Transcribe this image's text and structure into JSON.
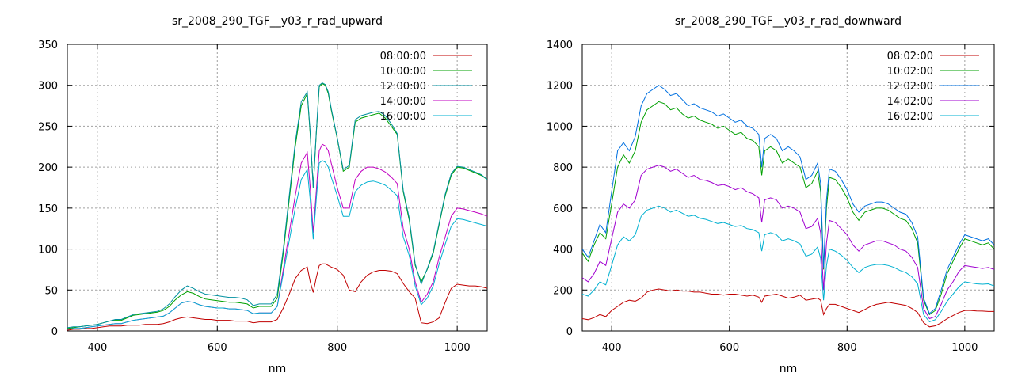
{
  "chart_data": [
    {
      "type": "line",
      "title": "sr_2008_290_TGF__y03_r_rad_upward",
      "xlabel": "nm",
      "ylabel": "",
      "xlim": [
        350,
        1050
      ],
      "ylim": [
        0,
        350
      ],
      "xticks": [
        400,
        600,
        800,
        1000
      ],
      "yticks": [
        0,
        50,
        100,
        150,
        200,
        250,
        300,
        350
      ],
      "grid": true,
      "legend_position": "top-right",
      "x": [
        350,
        360,
        370,
        380,
        390,
        400,
        410,
        420,
        430,
        440,
        450,
        460,
        470,
        480,
        490,
        500,
        510,
        520,
        530,
        540,
        550,
        560,
        570,
        580,
        590,
        600,
        610,
        620,
        630,
        640,
        650,
        660,
        670,
        680,
        690,
        700,
        710,
        720,
        730,
        740,
        750,
        755,
        760,
        765,
        770,
        775,
        780,
        785,
        790,
        800,
        810,
        820,
        830,
        840,
        850,
        860,
        870,
        880,
        890,
        900,
        910,
        920,
        930,
        940,
        950,
        960,
        970,
        980,
        990,
        1000,
        1010,
        1020,
        1030,
        1040,
        1050
      ],
      "series": [
        {
          "name": "08:00:00",
          "color": "#c00000",
          "values": [
            1,
            2,
            2,
            3,
            3,
            4,
            5,
            6,
            6,
            6,
            7,
            7,
            7,
            8,
            8,
            8,
            9,
            11,
            14,
            16,
            17,
            16,
            15,
            14,
            14,
            13,
            13,
            13,
            12,
            12,
            12,
            10,
            11,
            11,
            11,
            14,
            28,
            45,
            64,
            74,
            78,
            60,
            47,
            65,
            80,
            82,
            82,
            80,
            78,
            75,
            68,
            50,
            48,
            60,
            68,
            72,
            74,
            74,
            73,
            70,
            58,
            48,
            40,
            10,
            9,
            11,
            16,
            35,
            52,
            57,
            56,
            55,
            55,
            54,
            52
          ]
        },
        {
          "name": "10:00:00",
          "color": "#00a000",
          "values": [
            3,
            4,
            5,
            6,
            7,
            8,
            10,
            12,
            13,
            13,
            16,
            19,
            20,
            21,
            22,
            23,
            25,
            30,
            38,
            44,
            48,
            46,
            42,
            39,
            38,
            37,
            36,
            35,
            35,
            34,
            33,
            28,
            30,
            30,
            30,
            40,
            95,
            160,
            225,
            275,
            290,
            240,
            175,
            240,
            298,
            302,
            300,
            290,
            270,
            235,
            195,
            200,
            255,
            260,
            262,
            264,
            266,
            260,
            250,
            240,
            170,
            135,
            80,
            60,
            75,
            95,
            130,
            165,
            190,
            200,
            199,
            196,
            193,
            190,
            185
          ]
        },
        {
          "name": "12:00:00",
          "color": "#0090a0",
          "values": [
            4,
            5,
            5,
            6,
            7,
            8,
            10,
            12,
            14,
            14,
            17,
            20,
            21,
            22,
            23,
            24,
            27,
            33,
            42,
            50,
            55,
            52,
            48,
            45,
            44,
            43,
            42,
            41,
            41,
            40,
            38,
            31,
            33,
            33,
            33,
            45,
            100,
            165,
            230,
            280,
            292,
            242,
            175,
            242,
            300,
            303,
            301,
            292,
            272,
            236,
            197,
            202,
            258,
            263,
            265,
            267,
            268,
            263,
            253,
            241,
            172,
            138,
            82,
            57,
            76,
            97,
            132,
            167,
            192,
            201,
            200,
            197,
            194,
            191,
            185
          ]
        },
        {
          "name": "14:00:00",
          "color": "#c000c0",
          "values": [
            2,
            3,
            3,
            4,
            5,
            6,
            7,
            8,
            9,
            9,
            11,
            13,
            14,
            15,
            16,
            17,
            18,
            22,
            28,
            34,
            36,
            35,
            32,
            30,
            29,
            28,
            28,
            27,
            27,
            26,
            25,
            21,
            22,
            22,
            22,
            30,
            75,
            120,
            165,
            205,
            218,
            175,
            120,
            170,
            220,
            228,
            226,
            220,
            205,
            175,
            150,
            150,
            185,
            195,
            200,
            200,
            198,
            194,
            188,
            180,
            125,
            100,
            60,
            35,
            45,
            60,
            90,
            115,
            140,
            150,
            149,
            147,
            145,
            143,
            140
          ]
        },
        {
          "name": "16:00:00",
          "color": "#00b0d0",
          "values": [
            2,
            3,
            3,
            4,
            5,
            6,
            7,
            8,
            9,
            9,
            11,
            13,
            14,
            15,
            16,
            17,
            18,
            22,
            28,
            34,
            36,
            35,
            32,
            30,
            29,
            28,
            28,
            27,
            27,
            26,
            25,
            21,
            22,
            22,
            22,
            30,
            70,
            110,
            150,
            185,
            197,
            160,
            112,
            160,
            205,
            208,
            206,
            200,
            188,
            165,
            140,
            140,
            170,
            178,
            182,
            183,
            181,
            178,
            172,
            165,
            115,
            92,
            55,
            32,
            40,
            55,
            82,
            106,
            128,
            137,
            136,
            134,
            132,
            130,
            128
          ]
        }
      ]
    },
    {
      "type": "line",
      "title": "sr_2008_290_TGF__y03_r_rad_downward",
      "xlabel": "nm",
      "ylabel": "",
      "xlim": [
        350,
        1050
      ],
      "ylim": [
        0,
        1400
      ],
      "xticks": [
        400,
        600,
        800,
        1000
      ],
      "yticks": [
        0,
        200,
        400,
        600,
        800,
        1000,
        1200,
        1400
      ],
      "grid": true,
      "legend_position": "top-right",
      "x": [
        350,
        360,
        370,
        380,
        390,
        400,
        410,
        420,
        430,
        440,
        450,
        460,
        470,
        480,
        490,
        500,
        510,
        520,
        530,
        540,
        550,
        560,
        570,
        580,
        590,
        600,
        610,
        620,
        630,
        640,
        650,
        655,
        660,
        670,
        680,
        690,
        700,
        710,
        720,
        730,
        740,
        750,
        755,
        760,
        765,
        770,
        780,
        790,
        800,
        810,
        820,
        830,
        840,
        850,
        860,
        870,
        880,
        890,
        900,
        910,
        920,
        930,
        940,
        950,
        960,
        970,
        980,
        990,
        1000,
        1010,
        1020,
        1030,
        1040,
        1050
      ],
      "series": [
        {
          "name": "08:02:00",
          "color": "#c00000",
          "values": [
            60,
            55,
            65,
            80,
            70,
            100,
            120,
            140,
            150,
            145,
            160,
            190,
            200,
            205,
            200,
            195,
            200,
            195,
            195,
            190,
            190,
            185,
            180,
            180,
            175,
            180,
            180,
            175,
            170,
            175,
            165,
            140,
            170,
            175,
            180,
            170,
            160,
            165,
            175,
            150,
            155,
            160,
            150,
            80,
            110,
            130,
            130,
            120,
            110,
            100,
            90,
            105,
            120,
            130,
            135,
            140,
            135,
            130,
            125,
            110,
            90,
            40,
            20,
            25,
            40,
            60,
            75,
            90,
            100,
            100,
            98,
            97,
            95,
            95
          ]
        },
        {
          "name": "10:02:00",
          "color": "#00a000",
          "values": [
            380,
            340,
            420,
            480,
            450,
            620,
            800,
            860,
            820,
            880,
            1020,
            1080,
            1100,
            1120,
            1110,
            1080,
            1090,
            1060,
            1040,
            1050,
            1030,
            1020,
            1010,
            990,
            1000,
            980,
            960,
            970,
            940,
            930,
            900,
            760,
            880,
            900,
            880,
            820,
            840,
            820,
            800,
            700,
            720,
            780,
            680,
            300,
            600,
            750,
            740,
            700,
            650,
            580,
            540,
            580,
            590,
            600,
            600,
            590,
            570,
            550,
            540,
            500,
            430,
            150,
            80,
            100,
            180,
            280,
            340,
            400,
            450,
            440,
            430,
            420,
            430,
            400
          ]
        },
        {
          "name": "12:02:00",
          "color": "#0070e0",
          "values": [
            400,
            360,
            440,
            520,
            480,
            680,
            880,
            920,
            880,
            950,
            1100,
            1160,
            1180,
            1200,
            1180,
            1150,
            1160,
            1130,
            1100,
            1110,
            1090,
            1080,
            1070,
            1050,
            1060,
            1040,
            1020,
            1030,
            1000,
            990,
            960,
            800,
            940,
            960,
            940,
            880,
            900,
            880,
            850,
            740,
            760,
            820,
            720,
            310,
            640,
            790,
            780,
            740,
            690,
            620,
            580,
            610,
            620,
            630,
            630,
            620,
            600,
            580,
            570,
            530,
            460,
            160,
            85,
            110,
            200,
            300,
            360,
            420,
            470,
            460,
            450,
            440,
            450,
            420
          ]
        },
        {
          "name": "14:02:00",
          "color": "#a000d0",
          "values": [
            260,
            240,
            280,
            340,
            320,
            450,
            580,
            620,
            600,
            640,
            760,
            790,
            800,
            810,
            800,
            780,
            790,
            770,
            750,
            760,
            740,
            735,
            725,
            710,
            715,
            705,
            690,
            700,
            680,
            670,
            650,
            530,
            640,
            650,
            640,
            600,
            610,
            600,
            580,
            500,
            510,
            550,
            480,
            200,
            430,
            540,
            530,
            500,
            470,
            420,
            390,
            420,
            430,
            440,
            440,
            430,
            420,
            400,
            390,
            360,
            310,
            110,
            60,
            70,
            130,
            200,
            240,
            290,
            320,
            315,
            310,
            305,
            310,
            300
          ]
        },
        {
          "name": "16:02:00",
          "color": "#00b0d0",
          "values": [
            180,
            170,
            200,
            240,
            225,
            320,
            420,
            460,
            440,
            470,
            560,
            590,
            600,
            610,
            600,
            580,
            590,
            575,
            560,
            565,
            550,
            545,
            535,
            525,
            530,
            520,
            510,
            515,
            500,
            495,
            480,
            390,
            470,
            480,
            470,
            440,
            450,
            440,
            425,
            365,
            375,
            410,
            355,
            150,
            320,
            400,
            390,
            370,
            345,
            310,
            285,
            310,
            320,
            325,
            325,
            320,
            310,
            295,
            285,
            265,
            230,
            80,
            45,
            55,
            95,
            145,
            180,
            215,
            240,
            235,
            230,
            228,
            230,
            220
          ]
        }
      ]
    }
  ]
}
